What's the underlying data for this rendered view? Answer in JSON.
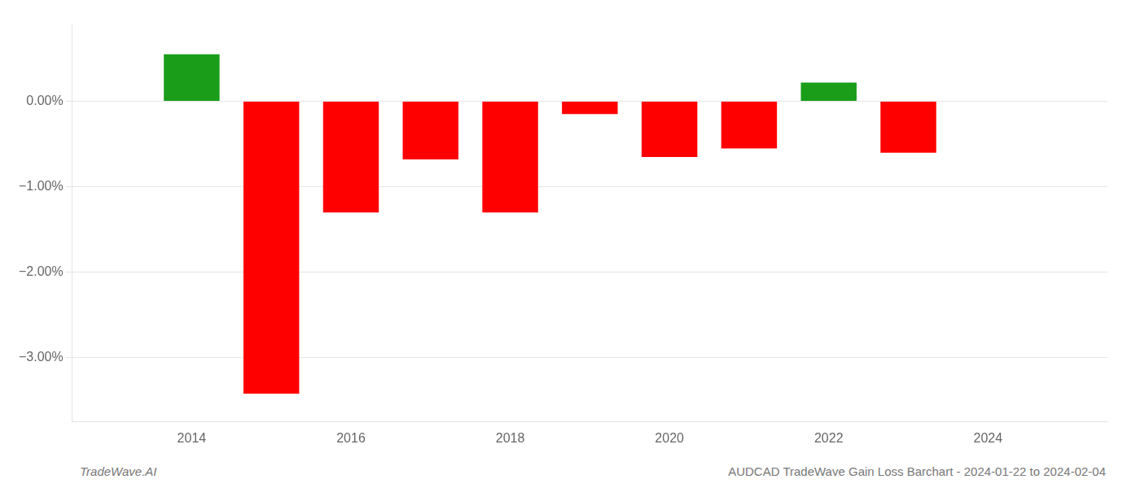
{
  "chart_data": {
    "type": "bar",
    "x": [
      2014,
      2015,
      2016,
      2017,
      2018,
      2019,
      2020,
      2021,
      2022,
      2023
    ],
    "values": [
      0.55,
      -3.42,
      -1.3,
      -0.68,
      -1.3,
      -0.15,
      -0.65,
      -0.55,
      0.22,
      -0.6
    ],
    "colors": [
      "#1a9e1a",
      "#ff0000",
      "#ff0000",
      "#ff0000",
      "#ff0000",
      "#ff0000",
      "#ff0000",
      "#ff0000",
      "#1a9e1a",
      "#ff0000"
    ],
    "xlim": [
      2012.5,
      2025.5
    ],
    "xticks": [
      2014,
      2016,
      2018,
      2020,
      2022,
      2024
    ],
    "ylim": [
      -3.75,
      0.9
    ],
    "yticks": [
      {
        "value": 0.0,
        "label": "0.00%"
      },
      {
        "value": -1.0,
        "label": "−1.00%"
      },
      {
        "value": -2.0,
        "label": "−2.00%"
      },
      {
        "value": -3.0,
        "label": "−3.00%"
      }
    ],
    "grid": "y",
    "annotations": [
      "TradeWave.AI",
      "AUDCAD TradeWave Gain Loss Barchart - 2024-01-22 to 2024-02-04"
    ]
  }
}
